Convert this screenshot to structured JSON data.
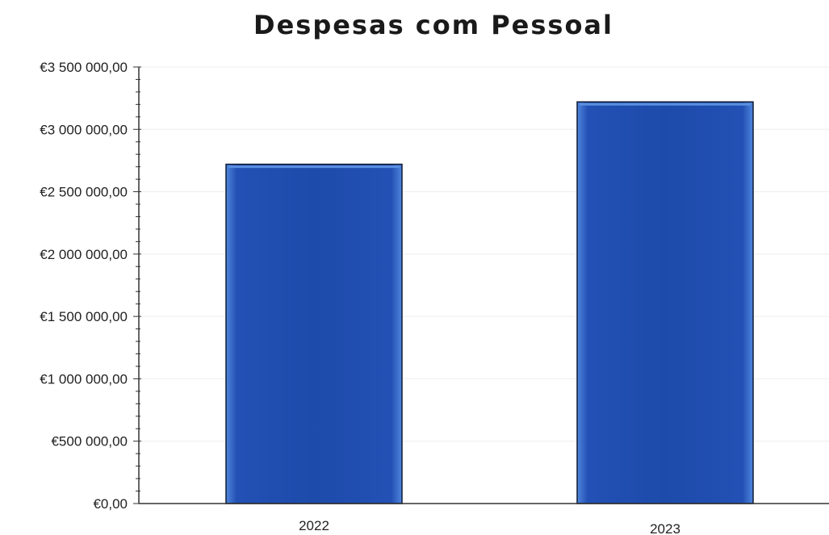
{
  "chart_data": {
    "type": "bar",
    "title": "Despesas com Pessoal",
    "categories": [
      "2022",
      "2023"
    ],
    "values": [
      2720000,
      3220000
    ],
    "ylim": [
      0,
      3500000
    ],
    "yticks": [
      {
        "value": 0,
        "label": "€0,00"
      },
      {
        "value": 500000,
        "label": "€500 000,00"
      },
      {
        "value": 1000000,
        "label": "€1 000 000,00"
      },
      {
        "value": 1500000,
        "label": "€1 500 000,00"
      },
      {
        "value": 2000000,
        "label": "€2 000 000,00"
      },
      {
        "value": 2500000,
        "label": "€2 500 000,00"
      },
      {
        "value": 3000000,
        "label": "€3 000 000,00"
      },
      {
        "value": 3500000,
        "label": "€3 500 000,00"
      }
    ],
    "xlabel": "",
    "ylabel": "",
    "grid": true,
    "legend": "none",
    "colors": {
      "bar_fill": "#1f4fb0",
      "bar_edge": "#5b8fe0",
      "bar_outline": "#0d1a33",
      "axis": "#333333",
      "grid": "#eeeeee"
    }
  }
}
